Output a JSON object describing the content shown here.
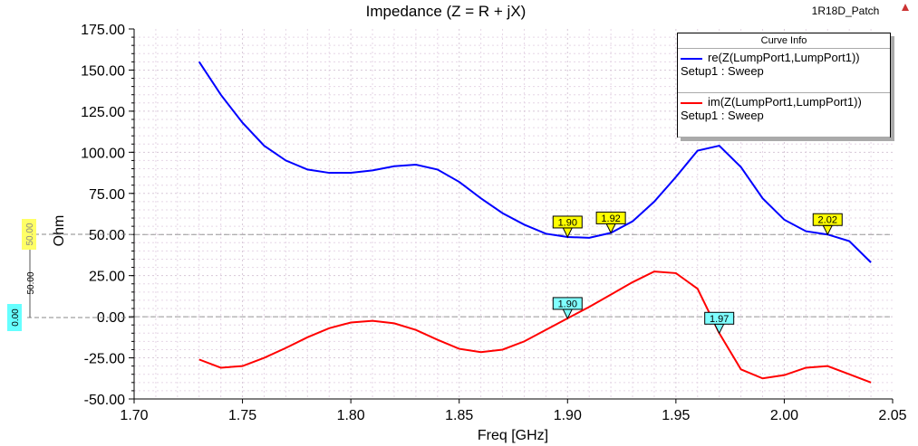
{
  "header": {
    "project": "1R18D_Patch"
  },
  "legend": {
    "title": "Curve Info",
    "entries": [
      {
        "name": "re(Z(LumpPort1,LumpPort1))",
        "setup": "Setup1 : Sweep",
        "color": "#0000ff"
      },
      {
        "name": "im(Z(LumpPort1,LumpPort1))",
        "setup": "Setup1 : Sweep",
        "color": "#ff0000"
      }
    ]
  },
  "y_markers": {
    "m1": "50.00",
    "m2": "0.00",
    "delta": "50.00"
  },
  "chart_data": {
    "type": "line",
    "title": "Impedance (Z = R + jX)",
    "xlabel": "Freq [GHz]",
    "ylabel": "Ohm",
    "xlim": [
      1.7,
      2.05
    ],
    "ylim": [
      -50,
      175
    ],
    "xticks": [
      "1.70",
      "1.75",
      "1.80",
      "1.85",
      "1.90",
      "1.95",
      "2.00",
      "2.05"
    ],
    "yticks": [
      "175.00",
      "150.00",
      "125.00",
      "100.00",
      "75.00",
      "50.00",
      "25.00",
      "0.00",
      "-25.00",
      "-50.00"
    ],
    "grid": true,
    "legend": "top-right",
    "x": [
      1.73,
      1.74,
      1.75,
      1.76,
      1.77,
      1.78,
      1.79,
      1.8,
      1.81,
      1.82,
      1.83,
      1.84,
      1.85,
      1.86,
      1.87,
      1.88,
      1.89,
      1.9,
      1.91,
      1.92,
      1.93,
      1.94,
      1.95,
      1.96,
      1.97,
      1.98,
      1.99,
      2.0,
      2.01,
      2.02,
      2.03,
      2.04
    ],
    "series": [
      {
        "name": "re(Z(LumpPort1,LumpPort1))",
        "values": [
          155,
          135,
          118,
          104,
          95,
          89.5,
          87.5,
          87.5,
          89,
          91.5,
          92.5,
          89.5,
          82,
          72,
          63,
          56,
          50.5,
          48.5,
          48,
          51,
          58,
          70,
          85,
          101,
          104,
          91,
          72,
          59,
          52,
          50,
          46,
          33
        ]
      },
      {
        "name": "im(Z(LumpPort1,LumpPort1))",
        "values": [
          -26,
          -31,
          -30,
          -25,
          -19,
          -12.5,
          -7,
          -3.5,
          -2.5,
          -4,
          -8,
          -14,
          -19.5,
          -21.5,
          -20,
          -15,
          -8,
          -1,
          6,
          13.5,
          21,
          27.5,
          26.5,
          17,
          -10,
          -32,
          -37.5,
          -35.5,
          -31,
          -30,
          -35,
          -40
        ]
      }
    ],
    "markers": [
      {
        "label": "1.90",
        "series": 0,
        "x": 1.9,
        "color": "#ffff00"
      },
      {
        "label": "1.92",
        "series": 0,
        "x": 1.92,
        "color": "#ffff00"
      },
      {
        "label": "2.02",
        "series": 0,
        "x": 2.02,
        "color": "#ffff00"
      },
      {
        "label": "1.90",
        "series": 1,
        "x": 1.9,
        "color": "#80ffff"
      },
      {
        "label": "1.97",
        "series": 1,
        "x": 1.97,
        "color": "#80ffff"
      }
    ]
  }
}
